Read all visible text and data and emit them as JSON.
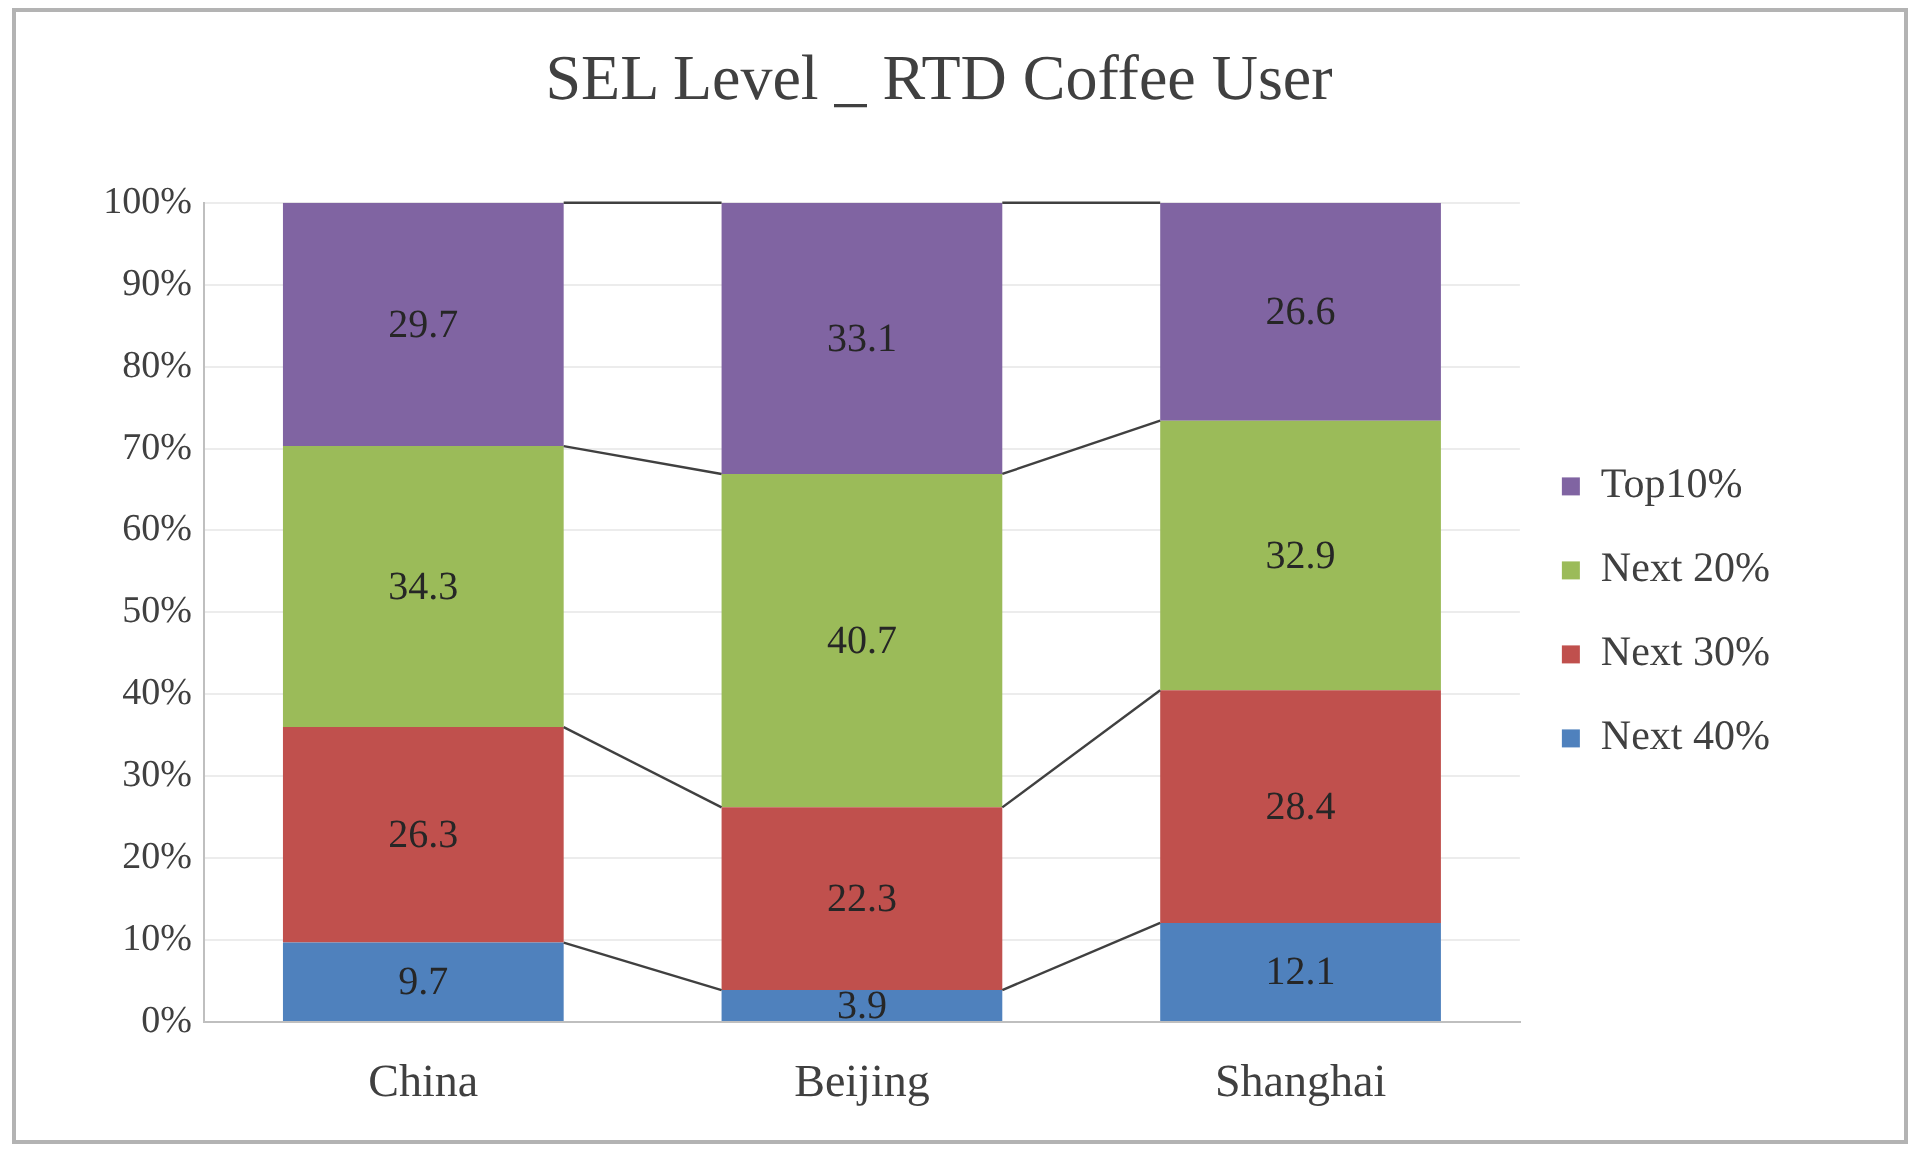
{
  "chart_data": {
    "type": "bar",
    "title": "SEL Level _ RTD Coffee User",
    "categories": [
      "China",
      "Beijing",
      "Shanghai"
    ],
    "series": [
      {
        "name": "Next 40%",
        "color": "#4f81bd",
        "values": [
          9.7,
          3.9,
          12.1
        ]
      },
      {
        "name": "Next 30%",
        "color": "#c0504d",
        "values": [
          26.3,
          22.3,
          28.4
        ]
      },
      {
        "name": "Next 20%",
        "color": "#9bbb59",
        "values": [
          34.3,
          40.7,
          32.9
        ]
      },
      {
        "name": "Top10%",
        "color": "#8064a2",
        "values": [
          29.7,
          33.1,
          26.6
        ]
      }
    ],
    "stacked": true,
    "ylim": [
      0,
      100
    ],
    "yticks": [
      {
        "value": 0,
        "label": "0%"
      },
      {
        "value": 10,
        "label": "10%"
      },
      {
        "value": 20,
        "label": "20%"
      },
      {
        "value": 30,
        "label": "30%"
      },
      {
        "value": 40,
        "label": "40%"
      },
      {
        "value": 50,
        "label": "50%"
      },
      {
        "value": 60,
        "label": "60%"
      },
      {
        "value": 70,
        "label": "70%"
      },
      {
        "value": 80,
        "label": "80%"
      },
      {
        "value": 90,
        "label": "90%"
      },
      {
        "value": 100,
        "label": "100%"
      }
    ],
    "grid": "y",
    "legend": "right",
    "data_labels": true
  }
}
